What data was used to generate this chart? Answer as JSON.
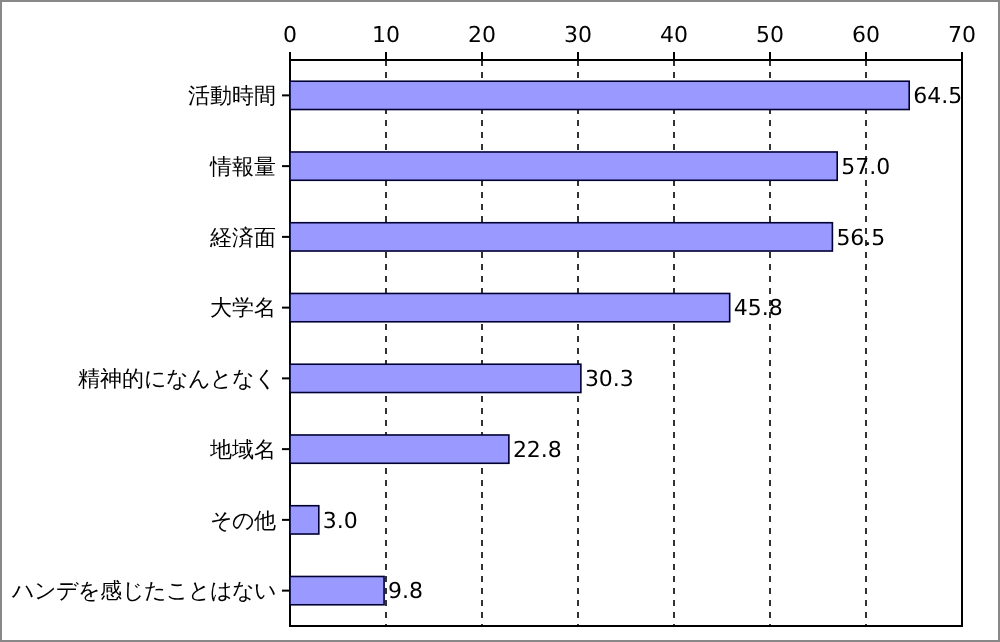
{
  "chart_data": {
    "type": "bar",
    "orientation": "horizontal",
    "categories": [
      "活動時間",
      "情報量",
      "経済面",
      "大学名",
      "精神的になんとなく",
      "地域名",
      "その他",
      "ハンデを感じたことはない"
    ],
    "values": [
      64.5,
      57.0,
      56.5,
      45.8,
      30.3,
      22.8,
      3.0,
      9.8
    ],
    "value_labels": [
      "64.5",
      "57.0",
      "56.5",
      "45.8",
      "30.3",
      "22.8",
      "3.0",
      "9.8"
    ],
    "color": "#9999ff",
    "xlim": [
      0,
      70
    ],
    "xticks": [
      0,
      10,
      20,
      30,
      40,
      50,
      60,
      70
    ],
    "grid": "x"
  }
}
